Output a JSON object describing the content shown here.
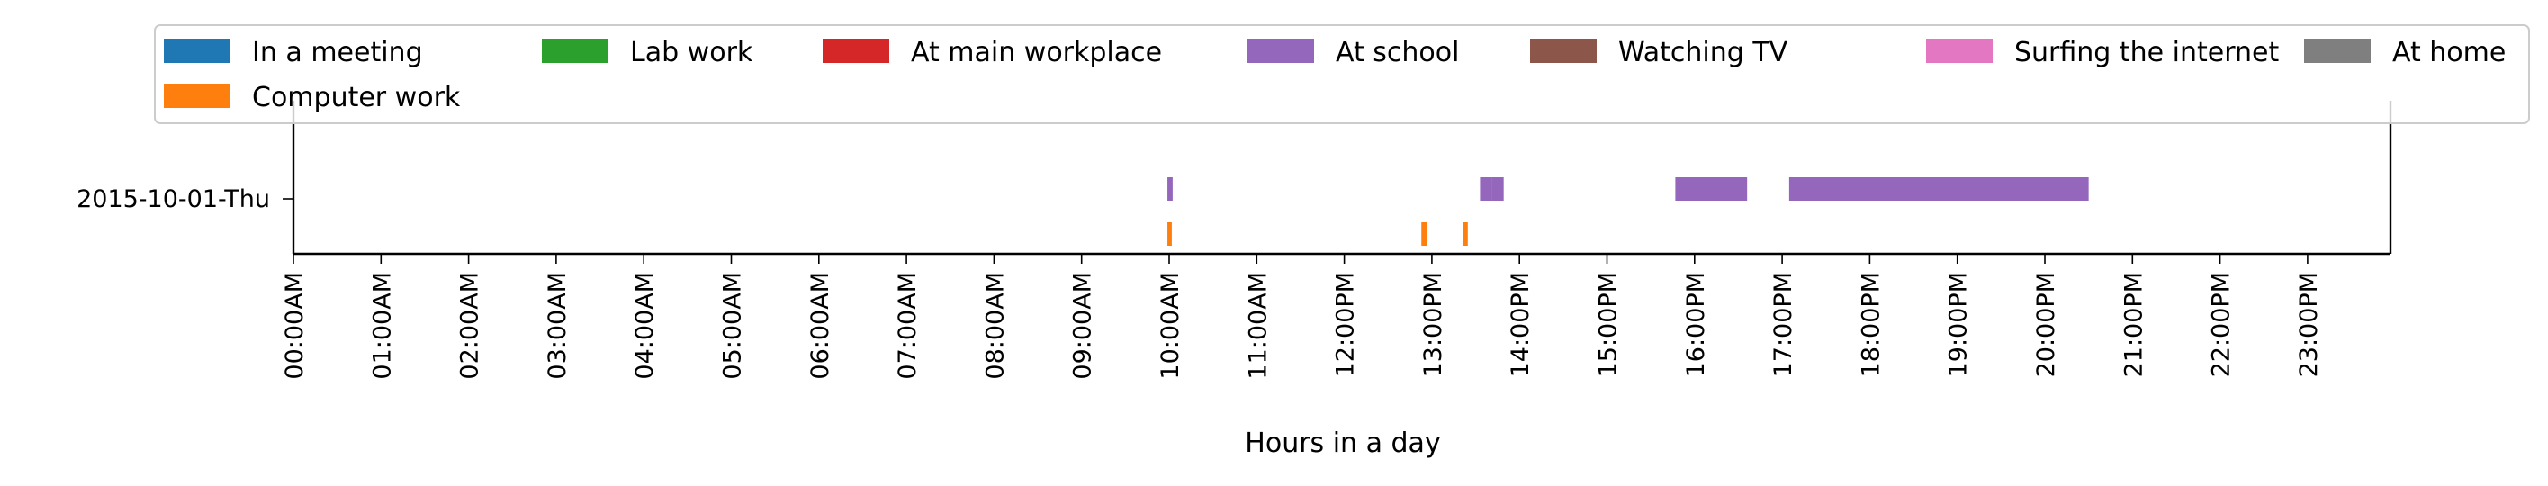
{
  "chart_data": {
    "type": "timeline",
    "title": "",
    "xlabel": "Hours in a day",
    "ylabel": "",
    "xlim_hours": [
      0,
      24
    ],
    "x_tick_labels": [
      "00:00AM",
      "01:00AM",
      "02:00AM",
      "03:00AM",
      "04:00AM",
      "05:00AM",
      "06:00AM",
      "07:00AM",
      "08:00AM",
      "09:00AM",
      "10:00AM",
      "11:00AM",
      "12:00PM",
      "13:00PM",
      "14:00PM",
      "15:00PM",
      "16:00PM",
      "17:00PM",
      "18:00PM",
      "19:00PM",
      "20:00PM",
      "21:00PM",
      "22:00PM",
      "23:00PM"
    ],
    "y_categories": [
      "2015-10-01-Thu"
    ],
    "legend_position": "top",
    "legend": [
      {
        "name": "In a meeting",
        "color": "#1f77b4"
      },
      {
        "name": "Lab work",
        "color": "#2ca02c"
      },
      {
        "name": "At main workplace",
        "color": "#d62728"
      },
      {
        "name": "At school",
        "color": "#9467bd"
      },
      {
        "name": "Watching TV",
        "color": "#8c564b"
      },
      {
        "name": "Surfing the internet",
        "color": "#e377c2"
      },
      {
        "name": "At home",
        "color": "#7f7f7f"
      },
      {
        "name": "Computer work",
        "color": "#ff7f0e"
      }
    ],
    "series": [
      {
        "name": "At school",
        "color": "#9467bd",
        "day": "2015-10-01-Thu",
        "intervals": [
          [
            9.98,
            10.04
          ],
          [
            13.55,
            13.68
          ],
          [
            13.68,
            13.82
          ],
          [
            15.78,
            16.6
          ],
          [
            17.08,
            20.5
          ]
        ]
      },
      {
        "name": "Computer work",
        "color": "#ff7f0e",
        "day": "2015-10-01-Thu",
        "intervals": [
          [
            9.98,
            10.03
          ],
          [
            12.88,
            12.95
          ],
          [
            13.36,
            13.41
          ]
        ]
      }
    ]
  }
}
